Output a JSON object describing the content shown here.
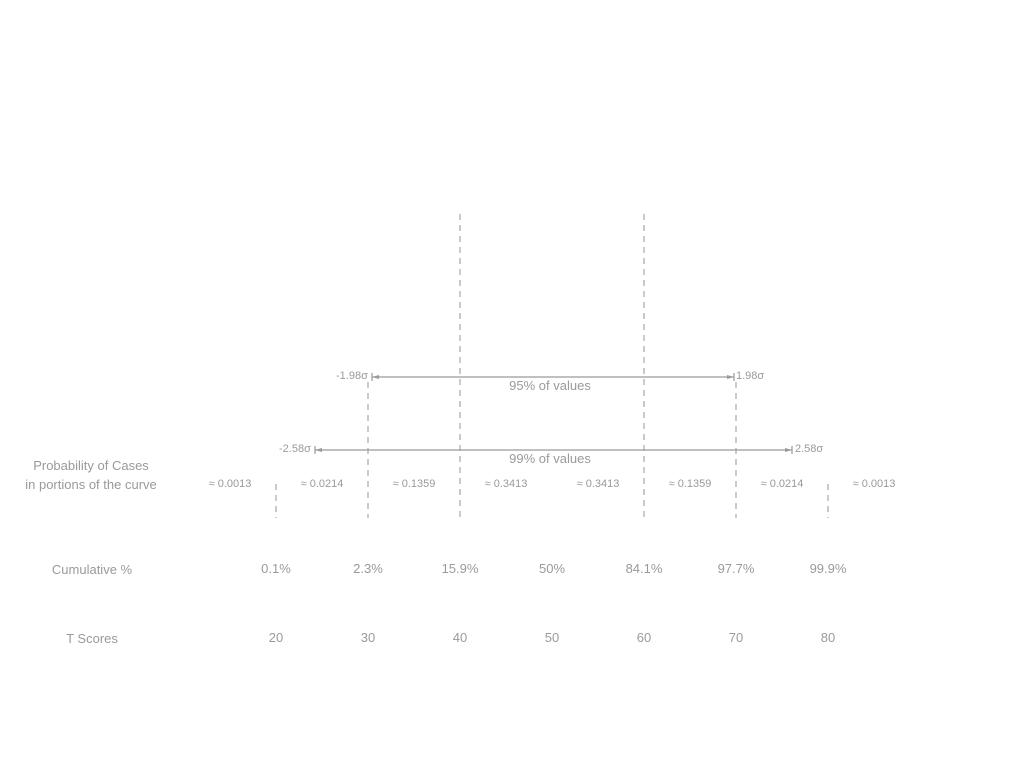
{
  "rows": {
    "probability_label_line1": "Probability of Cases",
    "probability_label_line2": "in portions of the curve",
    "cumulative_label": "Cumulative %",
    "tscore_label": "T Scores"
  },
  "probabilities": [
    "≈ 0.0013",
    "≈ 0.0214",
    "≈ 0.1359",
    "≈ 0.3413",
    "≈ 0.3413",
    "≈ 0.1359",
    "≈ 0.0214",
    "≈ 0.0013"
  ],
  "cumulative": [
    "0.1%",
    "2.3%",
    "15.9%",
    "50%",
    "84.1%",
    "97.7%",
    "99.9%"
  ],
  "t_scores": [
    "20",
    "30",
    "40",
    "50",
    "60",
    "70",
    "80"
  ],
  "interval_95": {
    "left": "-1.98σ",
    "right": "1.98σ",
    "caption": "95% of values"
  },
  "interval_99": {
    "left": "-2.58σ",
    "right": "2.58σ",
    "caption": "99% of values"
  },
  "colors": {
    "text": "#9a9a9a",
    "lines": "#a8a8a8"
  }
}
